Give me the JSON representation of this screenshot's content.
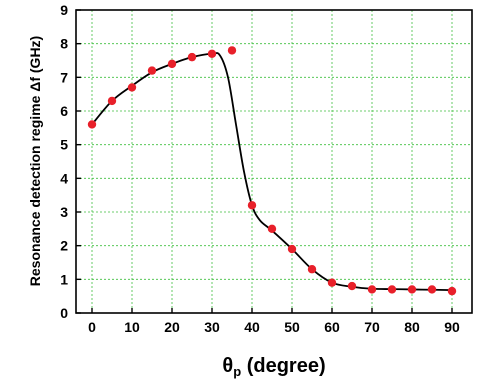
{
  "chart_data": {
    "type": "scatter",
    "title": "",
    "xlabel": "θp (degree)",
    "xlabel_main": "θ",
    "xlabel_sub": "p",
    "xlabel_rest": " (degree)",
    "ylabel": "Resonance detection regime Δf (GHz)",
    "xlim": [
      -4,
      95
    ],
    "ylim": [
      0,
      9
    ],
    "xticks": [
      0,
      10,
      20,
      30,
      40,
      50,
      60,
      70,
      80,
      90
    ],
    "yticks": [
      0,
      1,
      2,
      3,
      4,
      5,
      6,
      7,
      8,
      9
    ],
    "grid": true,
    "series": [
      {
        "kind": "points",
        "color": "#e8202a",
        "x": [
          0,
          5,
          10,
          15,
          20,
          25,
          30,
          35,
          40,
          45,
          50,
          55,
          60,
          65,
          70,
          75,
          80,
          85,
          90
        ],
        "y": [
          5.6,
          6.3,
          6.7,
          7.2,
          7.4,
          7.6,
          7.7,
          7.8,
          3.2,
          2.5,
          1.9,
          1.3,
          0.9,
          0.8,
          0.7,
          0.7,
          0.7,
          0.7,
          0.65
        ]
      },
      {
        "kind": "fit-line",
        "color": "#000000",
        "x": [
          0,
          5,
          10,
          15,
          20,
          25,
          30,
          32,
          34,
          36,
          38,
          40,
          42,
          45,
          50,
          55,
          60,
          65,
          70,
          75,
          80,
          85,
          90
        ],
        "y": [
          5.6,
          6.3,
          6.75,
          7.15,
          7.4,
          7.6,
          7.7,
          7.65,
          7.0,
          5.6,
          4.2,
          3.2,
          2.75,
          2.45,
          1.9,
          1.3,
          0.9,
          0.78,
          0.72,
          0.71,
          0.7,
          0.69,
          0.68
        ]
      }
    ]
  }
}
